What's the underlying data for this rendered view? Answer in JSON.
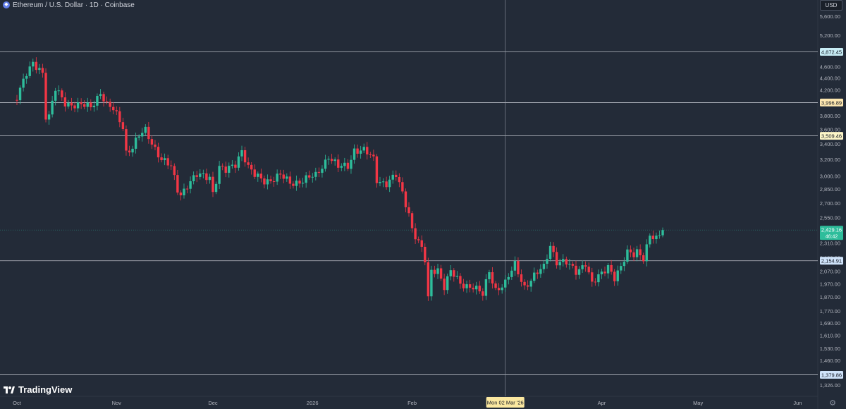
{
  "header": {
    "symbol_title": "Ethereum / U.S. Dollar · 1D · Coinbase",
    "currency": "USD"
  },
  "footer": {
    "logo_text": "TradingView",
    "settings_icon": "gear-icon"
  },
  "colors": {
    "background": "#232b38",
    "axis_text": "#b2b5be",
    "up": "#2ebd9b",
    "down": "#f23645",
    "horizontal_line": "#d1d4dc",
    "crosshair": "#9aa0ab"
  },
  "crosshair": {
    "date_label": "Mon 02 Mar '26"
  },
  "chart_data": {
    "type": "candlestick",
    "title": "Ethereum / U.S. Dollar · 1D · Coinbase",
    "price_scale": "log",
    "ylim": [
      1300,
      6000
    ],
    "y_ticks": [
      {
        "value": 5600,
        "label": "5,600.00"
      },
      {
        "value": 5200,
        "label": "5,200.00"
      },
      {
        "value": 4600,
        "label": "4,600.00"
      },
      {
        "value": 4400,
        "label": "4,400.00"
      },
      {
        "value": 4200,
        "label": "4,200.00"
      },
      {
        "value": 3800,
        "label": "3,800.00"
      },
      {
        "value": 3600,
        "label": "3,600.00"
      },
      {
        "value": 3400,
        "label": "3,400.00"
      },
      {
        "value": 3200,
        "label": "3,200.00"
      },
      {
        "value": 3000,
        "label": "3,000.00"
      },
      {
        "value": 2850,
        "label": "2,850.00"
      },
      {
        "value": 2700,
        "label": "2,700.00"
      },
      {
        "value": 2550,
        "label": "2,550.00"
      },
      {
        "value": 2310,
        "label": "2,310.00"
      },
      {
        "value": 2180,
        "label": "2,180.00"
      },
      {
        "value": 2070,
        "label": "2,070.00"
      },
      {
        "value": 1970,
        "label": "1,970.00"
      },
      {
        "value": 1870,
        "label": "1,870.00"
      },
      {
        "value": 1770,
        "label": "1,770.00"
      },
      {
        "value": 1690,
        "label": "1,690.00"
      },
      {
        "value": 1610,
        "label": "1,610.00"
      },
      {
        "value": 1530,
        "label": "1,530.00"
      },
      {
        "value": 1460,
        "label": "1,460.00"
      },
      {
        "value": 1326,
        "label": "1,326.00"
      }
    ],
    "x_ticks": [
      {
        "date": "2025-10-01",
        "label": "Oct"
      },
      {
        "date": "2025-11-01",
        "label": "Nov"
      },
      {
        "date": "2025-12-01",
        "label": "Dec"
      },
      {
        "date": "2026-01-01",
        "label": "2026"
      },
      {
        "date": "2026-02-01",
        "label": "Feb"
      },
      {
        "date": "2026-04-01",
        "label": "Apr"
      },
      {
        "date": "2026-05-01",
        "label": "May"
      },
      {
        "date": "2026-06-01",
        "label": "Jun"
      }
    ],
    "xlim": [
      "2025-10-01",
      "2026-06-02"
    ],
    "horizontal_levels": [
      {
        "value": 4872.45,
        "label": "4,872.45",
        "bg": "#c7ecf5"
      },
      {
        "value": 3996.89,
        "label": "3,996.89",
        "bg": "#fde7b0"
      },
      {
        "value": 3509.46,
        "label": "3,509.46",
        "bg": "#fdf6c8"
      },
      {
        "value": 2154.91,
        "label": "2,154.91",
        "bg": "#cfe3fa"
      },
      {
        "value": 1379.86,
        "label": "1,379.86",
        "bg": "#cfe3fa"
      }
    ],
    "last_price": {
      "value": 2429.16,
      "label": "2,429.16",
      "countdown": "46:42"
    },
    "crosshair_date": "2026-03-02",
    "ohlc_anchors": [
      [
        "2025-10-01",
        4100
      ],
      [
        "2025-10-04",
        4450
      ],
      [
        "2025-10-06",
        4650
      ],
      [
        "2025-10-08",
        4580
      ],
      [
        "2025-10-09",
        4500
      ],
      [
        "2025-10-10",
        3800
      ],
      [
        "2025-10-11",
        3780
      ],
      [
        "2025-10-13",
        4200
      ],
      [
        "2025-10-16",
        4000
      ],
      [
        "2025-10-20",
        3950
      ],
      [
        "2025-10-24",
        3930
      ],
      [
        "2025-10-27",
        4170
      ],
      [
        "2025-10-29",
        3950
      ],
      [
        "2025-10-31",
        3880
      ],
      [
        "2025-11-03",
        3650
      ],
      [
        "2025-11-04",
        3300
      ],
      [
        "2025-11-06",
        3360
      ],
      [
        "2025-11-08",
        3500
      ],
      [
        "2025-11-10",
        3580
      ],
      [
        "2025-11-13",
        3350
      ],
      [
        "2025-11-15",
        3200
      ],
      [
        "2025-11-18",
        3100
      ],
      [
        "2025-11-20",
        2850
      ],
      [
        "2025-11-21",
        2800
      ],
      [
        "2025-11-23",
        2900
      ],
      [
        "2025-11-26",
        3000
      ],
      [
        "2025-11-30",
        3000
      ],
      [
        "2025-12-01",
        2820
      ],
      [
        "2025-12-03",
        3100
      ],
      [
        "2025-12-05",
        3050
      ],
      [
        "2025-12-08",
        3150
      ],
      [
        "2025-12-10",
        3330
      ],
      [
        "2025-12-12",
        3100
      ],
      [
        "2025-12-14",
        3000
      ],
      [
        "2025-12-17",
        2950
      ],
      [
        "2025-12-19",
        2960
      ],
      [
        "2025-12-22",
        3000
      ],
      [
        "2025-12-25",
        2920
      ],
      [
        "2025-12-29",
        2950
      ],
      [
        "2026-01-02",
        3000
      ],
      [
        "2026-01-06",
        3250
      ],
      [
        "2026-01-09",
        3100
      ],
      [
        "2026-01-12",
        3120
      ],
      [
        "2026-01-14",
        3330
      ],
      [
        "2026-01-17",
        3310
      ],
      [
        "2026-01-20",
        3200
      ],
      [
        "2026-01-21",
        2960
      ],
      [
        "2026-01-24",
        2920
      ],
      [
        "2026-01-27",
        3000
      ],
      [
        "2026-01-29",
        2800
      ],
      [
        "2026-01-31",
        2600
      ],
      [
        "2026-02-01",
        2450
      ],
      [
        "2026-02-04",
        2250
      ],
      [
        "2026-02-05",
        2150
      ],
      [
        "2026-02-06",
        1850
      ],
      [
        "2026-02-07",
        2070
      ],
      [
        "2026-02-09",
        2090
      ],
      [
        "2026-02-11",
        1950
      ],
      [
        "2026-02-13",
        2060
      ],
      [
        "2026-02-16",
        1970
      ],
      [
        "2026-02-20",
        1950
      ],
      [
        "2026-02-23",
        1880
      ],
      [
        "2026-02-25",
        2070
      ],
      [
        "2026-02-27",
        1930
      ],
      [
        "2026-03-02",
        1970
      ],
      [
        "2026-03-05",
        2120
      ],
      [
        "2026-03-08",
        1950
      ],
      [
        "2026-03-10",
        2000
      ],
      [
        "2026-03-14",
        2100
      ],
      [
        "2026-03-16",
        2300
      ],
      [
        "2026-03-18",
        2150
      ],
      [
        "2026-03-21",
        2130
      ],
      [
        "2026-03-24",
        2070
      ],
      [
        "2026-03-27",
        2140
      ],
      [
        "2026-03-29",
        1960
      ],
      [
        "2026-04-01",
        2050
      ],
      [
        "2026-04-03",
        2120
      ],
      [
        "2026-04-05",
        2020
      ],
      [
        "2026-04-07",
        2090
      ],
      [
        "2026-04-09",
        2220
      ],
      [
        "2026-04-11",
        2220
      ],
      [
        "2026-04-12",
        2250
      ],
      [
        "2026-04-14",
        2180
      ],
      [
        "2026-04-16",
        2360
      ],
      [
        "2026-04-18",
        2340
      ],
      [
        "2026-04-20",
        2429
      ]
    ]
  }
}
